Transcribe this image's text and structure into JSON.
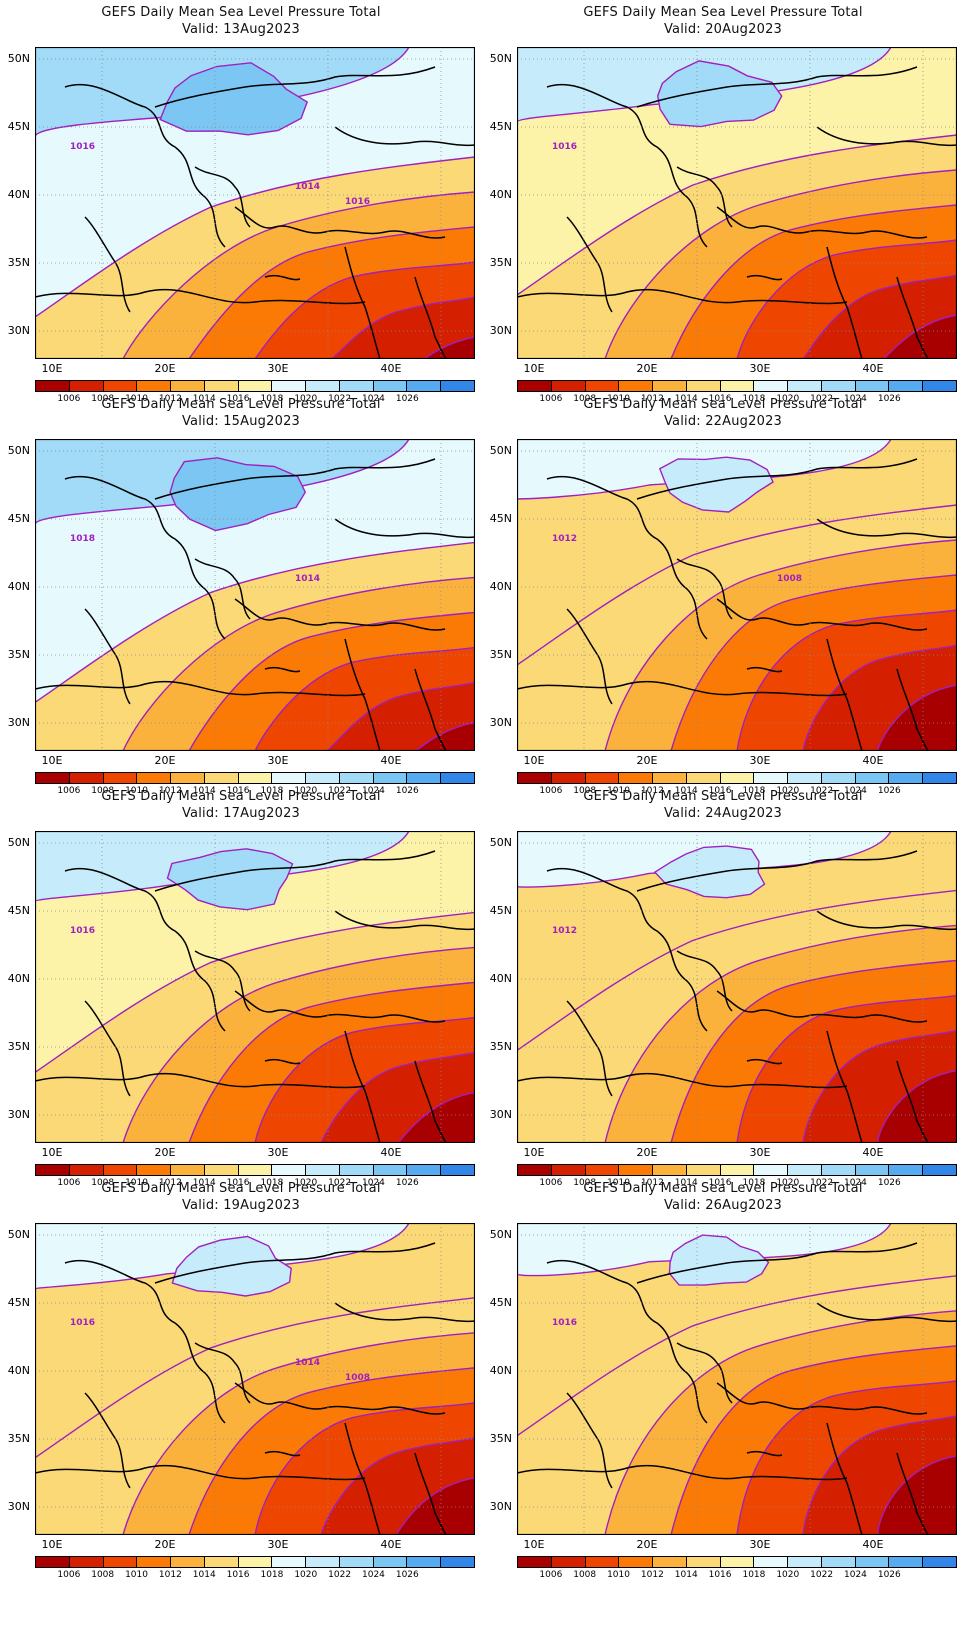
{
  "title_prefix": "GEFS Daily Mean Sea Level Pressure Total",
  "panels": [
    {
      "title": "GEFS Daily Mean Sea Level Pressure Total",
      "valid": "Valid:  13Aug2023",
      "contours": [
        "1016",
        "1014",
        "1016"
      ]
    },
    {
      "title": "GEFS Daily Mean Sea Level Pressure Total",
      "valid": "Valid:  20Aug2023",
      "contours": [
        "1016"
      ]
    },
    {
      "title": "GEFS Daily Mean Sea Level Pressure Total",
      "valid": "Valid:  15Aug2023",
      "contours": [
        "1018",
        "1014"
      ]
    },
    {
      "title": "GEFS Daily Mean Sea Level Pressure Total",
      "valid": "Valid:  22Aug2023",
      "contours": [
        "1012",
        "1008"
      ]
    },
    {
      "title": "GEFS Daily Mean Sea Level Pressure Total",
      "valid": "Valid:  17Aug2023",
      "contours": [
        "1016"
      ]
    },
    {
      "title": "GEFS Daily Mean Sea Level Pressure Total",
      "valid": "Valid:  24Aug2023",
      "contours": [
        "1012"
      ]
    },
    {
      "title": "GEFS Daily Mean Sea Level Pressure Total",
      "valid": "Valid:  19Aug2023",
      "contours": [
        "1016",
        "1014",
        "1008"
      ]
    },
    {
      "title": "GEFS Daily Mean Sea Level Pressure Total",
      "valid": "Valid:  26Aug2023",
      "contours": [
        "1016"
      ]
    }
  ],
  "axes": {
    "y_ticks": [
      "50N",
      "45N",
      "40N",
      "35N",
      "30N"
    ],
    "x_ticks": [
      "10E",
      "20E",
      "30E",
      "40E"
    ]
  },
  "colorbar": {
    "labels": [
      "1006",
      "1008",
      "1010",
      "1012",
      "1014",
      "1016",
      "1018",
      "1020",
      "1022",
      "1024",
      "1026"
    ],
    "colors": [
      "#a80000",
      "#d41f00",
      "#ee4600",
      "#fa7a05",
      "#fbb23c",
      "#fcd977",
      "#fdf3a8",
      "#e6fafe",
      "#c6ecfc",
      "#a2dbf7",
      "#7cc6f3",
      "#55aaf0",
      "#3286e8"
    ]
  }
}
